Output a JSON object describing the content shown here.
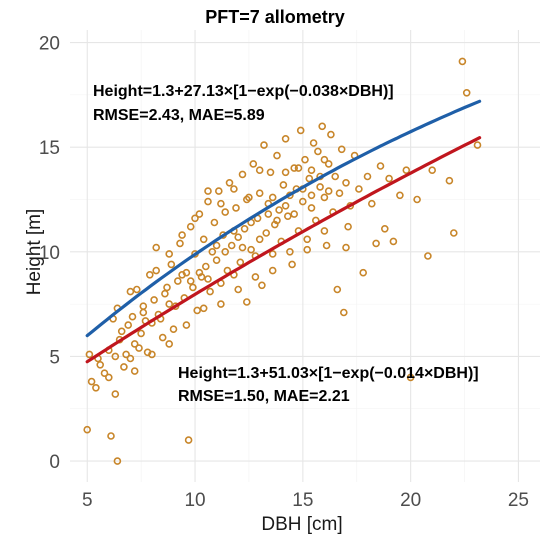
{
  "chart_data": {
    "type": "scatter",
    "title": "PFT=7 allometry",
    "xlabel": "DBH [cm]",
    "ylabel": "Height [m]",
    "xlim": [
      4.2,
      26
    ],
    "ylim": [
      -1,
      20.6
    ],
    "x_ticks": [
      5,
      10,
      15,
      20,
      25
    ],
    "y_ticks": [
      0,
      5,
      10,
      15,
      20
    ],
    "grid": true,
    "point_color": "#c8862a",
    "curves": [
      {
        "color": "#1f5fa8",
        "equation": "Height=1.3+27.13×[1−exp(−0.038×DBH)]",
        "metrics": "RMSE=2.43, MAE=5.89",
        "params": {
          "a": 1.3,
          "b": 27.13,
          "c": 0.038
        },
        "x_range": [
          5,
          23.2
        ]
      },
      {
        "color": "#c0161e",
        "equation": "Height=1.3+51.03×[1−exp(−0.014×DBH)]",
        "metrics": "RMSE=1.50, MAE=2.21",
        "params": {
          "a": 1.3,
          "b": 51.03,
          "c": 0.014
        },
        "x_range": [
          5,
          23.2
        ]
      }
    ],
    "points": [
      [
        5.0,
        1.5
      ],
      [
        5.1,
        5.1
      ],
      [
        5.2,
        3.8
      ],
      [
        5.4,
        3.5
      ],
      [
        5.6,
        4.6
      ],
      [
        5.8,
        4.2
      ],
      [
        6.0,
        5.3
      ],
      [
        6.1,
        1.2
      ],
      [
        6.3,
        3.2
      ],
      [
        6.4,
        0.0
      ],
      [
        6.2,
        6.8
      ],
      [
        6.5,
        5.8
      ],
      [
        6.7,
        4.5
      ],
      [
        6.9,
        6.5
      ],
      [
        7.0,
        4.9
      ],
      [
        7.2,
        5.6
      ],
      [
        7.3,
        8.2
      ],
      [
        7.5,
        6.1
      ],
      [
        7.6,
        7.4
      ],
      [
        7.8,
        5.2
      ],
      [
        7.9,
        8.9
      ],
      [
        8.0,
        6.6
      ],
      [
        8.2,
        10.2
      ],
      [
        8.3,
        7.0
      ],
      [
        8.5,
        5.9
      ],
      [
        8.6,
        8.0
      ],
      [
        8.8,
        7.5
      ],
      [
        8.9,
        9.4
      ],
      [
        9.0,
        6.3
      ],
      [
        9.2,
        8.6
      ],
      [
        9.3,
        10.4
      ],
      [
        9.5,
        7.8
      ],
      [
        9.6,
        9.0
      ],
      [
        9.7,
        1.0
      ],
      [
        9.8,
        11.2
      ],
      [
        9.9,
        8.3
      ],
      [
        10.0,
        9.9
      ],
      [
        10.1,
        7.2
      ],
      [
        10.2,
        11.8
      ],
      [
        10.3,
        8.8
      ],
      [
        10.4,
        10.6
      ],
      [
        10.5,
        9.3
      ],
      [
        10.6,
        12.4
      ],
      [
        10.7,
        8.1
      ],
      [
        10.8,
        10.0
      ],
      [
        10.9,
        11.4
      ],
      [
        11.0,
        9.6
      ],
      [
        11.1,
        12.9
      ],
      [
        11.2,
        8.5
      ],
      [
        11.3,
        10.8
      ],
      [
        11.4,
        11.9
      ],
      [
        11.5,
        9.1
      ],
      [
        11.6,
        13.3
      ],
      [
        11.7,
        10.3
      ],
      [
        11.8,
        8.9
      ],
      [
        11.9,
        12.1
      ],
      [
        12.0,
        10.7
      ],
      [
        12.1,
        9.5
      ],
      [
        12.2,
        13.7
      ],
      [
        12.3,
        11.1
      ],
      [
        12.4,
        7.6
      ],
      [
        12.5,
        12.6
      ],
      [
        12.6,
        10.1
      ],
      [
        12.7,
        14.2
      ],
      [
        12.8,
        9.8
      ],
      [
        12.9,
        11.6
      ],
      [
        13.0,
        12.8
      ],
      [
        13.1,
        8.4
      ],
      [
        13.2,
        15.1
      ],
      [
        13.3,
        10.9
      ],
      [
        13.4,
        12.3
      ],
      [
        13.5,
        13.8
      ],
      [
        13.6,
        9.9
      ],
      [
        13.7,
        11.3
      ],
      [
        13.8,
        14.6
      ],
      [
        13.9,
        12.0
      ],
      [
        14.0,
        10.5
      ],
      [
        14.1,
        13.2
      ],
      [
        14.2,
        15.4
      ],
      [
        14.3,
        11.7
      ],
      [
        14.4,
        12.7
      ],
      [
        14.5,
        9.4
      ],
      [
        14.6,
        14.0
      ],
      [
        14.7,
        13.0
      ],
      [
        14.8,
        11.0
      ],
      [
        14.9,
        15.8
      ],
      [
        15.0,
        12.4
      ],
      [
        15.1,
        14.4
      ],
      [
        15.2,
        10.6
      ],
      [
        15.3,
        13.5
      ],
      [
        15.4,
        12.1
      ],
      [
        15.5,
        15.2
      ],
      [
        15.6,
        11.5
      ],
      [
        15.7,
        14.8
      ],
      [
        15.8,
        13.1
      ],
      [
        15.9,
        16.0
      ],
      [
        16.0,
        12.6
      ],
      [
        16.1,
        10.3
      ],
      [
        16.2,
        14.2
      ],
      [
        16.3,
        15.6
      ],
      [
        16.4,
        11.9
      ],
      [
        16.5,
        13.6
      ],
      [
        16.6,
        8.2
      ],
      [
        16.7,
        12.8
      ],
      [
        16.8,
        14.9
      ],
      [
        16.9,
        7.1
      ],
      [
        17.0,
        13.3
      ],
      [
        17.1,
        11.2
      ],
      [
        17.2,
        12.2
      ],
      [
        17.4,
        14.6
      ],
      [
        17.6,
        13.0
      ],
      [
        17.8,
        9.0
      ],
      [
        18.0,
        13.6
      ],
      [
        18.2,
        12.3
      ],
      [
        18.4,
        10.4
      ],
      [
        18.6,
        14.1
      ],
      [
        18.8,
        11.1
      ],
      [
        19.0,
        13.5
      ],
      [
        19.2,
        10.5
      ],
      [
        19.5,
        12.7
      ],
      [
        19.8,
        13.9
      ],
      [
        20.0,
        4.0
      ],
      [
        20.3,
        12.5
      ],
      [
        20.8,
        9.8
      ],
      [
        21.0,
        13.9
      ],
      [
        21.8,
        13.4
      ],
      [
        22.0,
        10.9
      ],
      [
        22.4,
        19.1
      ],
      [
        22.6,
        17.6
      ],
      [
        23.1,
        15.1
      ],
      [
        5.5,
        4.9
      ],
      [
        6.0,
        4.0
      ],
      [
        6.3,
        5.0
      ],
      [
        6.6,
        6.2
      ],
      [
        6.8,
        5.1
      ],
      [
        7.1,
        6.9
      ],
      [
        7.4,
        5.4
      ],
      [
        7.7,
        6.7
      ],
      [
        8.1,
        7.7
      ],
      [
        8.4,
        6.8
      ],
      [
        8.7,
        8.3
      ],
      [
        9.1,
        7.4
      ],
      [
        9.4,
        8.9
      ],
      [
        9.8,
        8.6
      ],
      [
        10.2,
        9.0
      ],
      [
        10.6,
        8.7
      ],
      [
        11.0,
        10.3
      ],
      [
        11.4,
        10.0
      ],
      [
        11.8,
        11.0
      ],
      [
        12.2,
        10.2
      ],
      [
        12.6,
        11.4
      ],
      [
        13.0,
        10.6
      ],
      [
        13.4,
        11.8
      ],
      [
        13.8,
        11.5
      ],
      [
        14.2,
        12.2
      ],
      [
        14.6,
        11.8
      ],
      [
        15.0,
        13.0
      ],
      [
        15.4,
        12.7
      ],
      [
        15.8,
        13.6
      ],
      [
        16.2,
        12.9
      ],
      [
        6.4,
        7.3
      ],
      [
        7.0,
        8.1
      ],
      [
        7.6,
        7.1
      ],
      [
        8.2,
        9.1
      ],
      [
        8.8,
        9.9
      ],
      [
        9.4,
        10.8
      ],
      [
        10.0,
        11.6
      ],
      [
        10.6,
        12.9
      ],
      [
        11.2,
        12.3
      ],
      [
        11.8,
        13.0
      ],
      [
        12.4,
        12.5
      ],
      [
        13.0,
        13.9
      ],
      [
        13.6,
        12.6
      ],
      [
        14.2,
        13.8
      ],
      [
        14.8,
        14.0
      ],
      [
        15.4,
        13.9
      ],
      [
        16.0,
        14.4
      ],
      [
        7.2,
        4.3
      ],
      [
        8.0,
        5.1
      ],
      [
        8.8,
        5.6
      ],
      [
        9.6,
        6.5
      ],
      [
        10.4,
        7.3
      ],
      [
        11.2,
        7.5
      ],
      [
        12.0,
        8.2
      ],
      [
        12.8,
        8.8
      ],
      [
        13.6,
        9.1
      ],
      [
        14.4,
        10.0
      ],
      [
        15.2,
        10.1
      ],
      [
        16.0,
        11.0
      ],
      [
        17.0,
        10.2
      ]
    ]
  }
}
